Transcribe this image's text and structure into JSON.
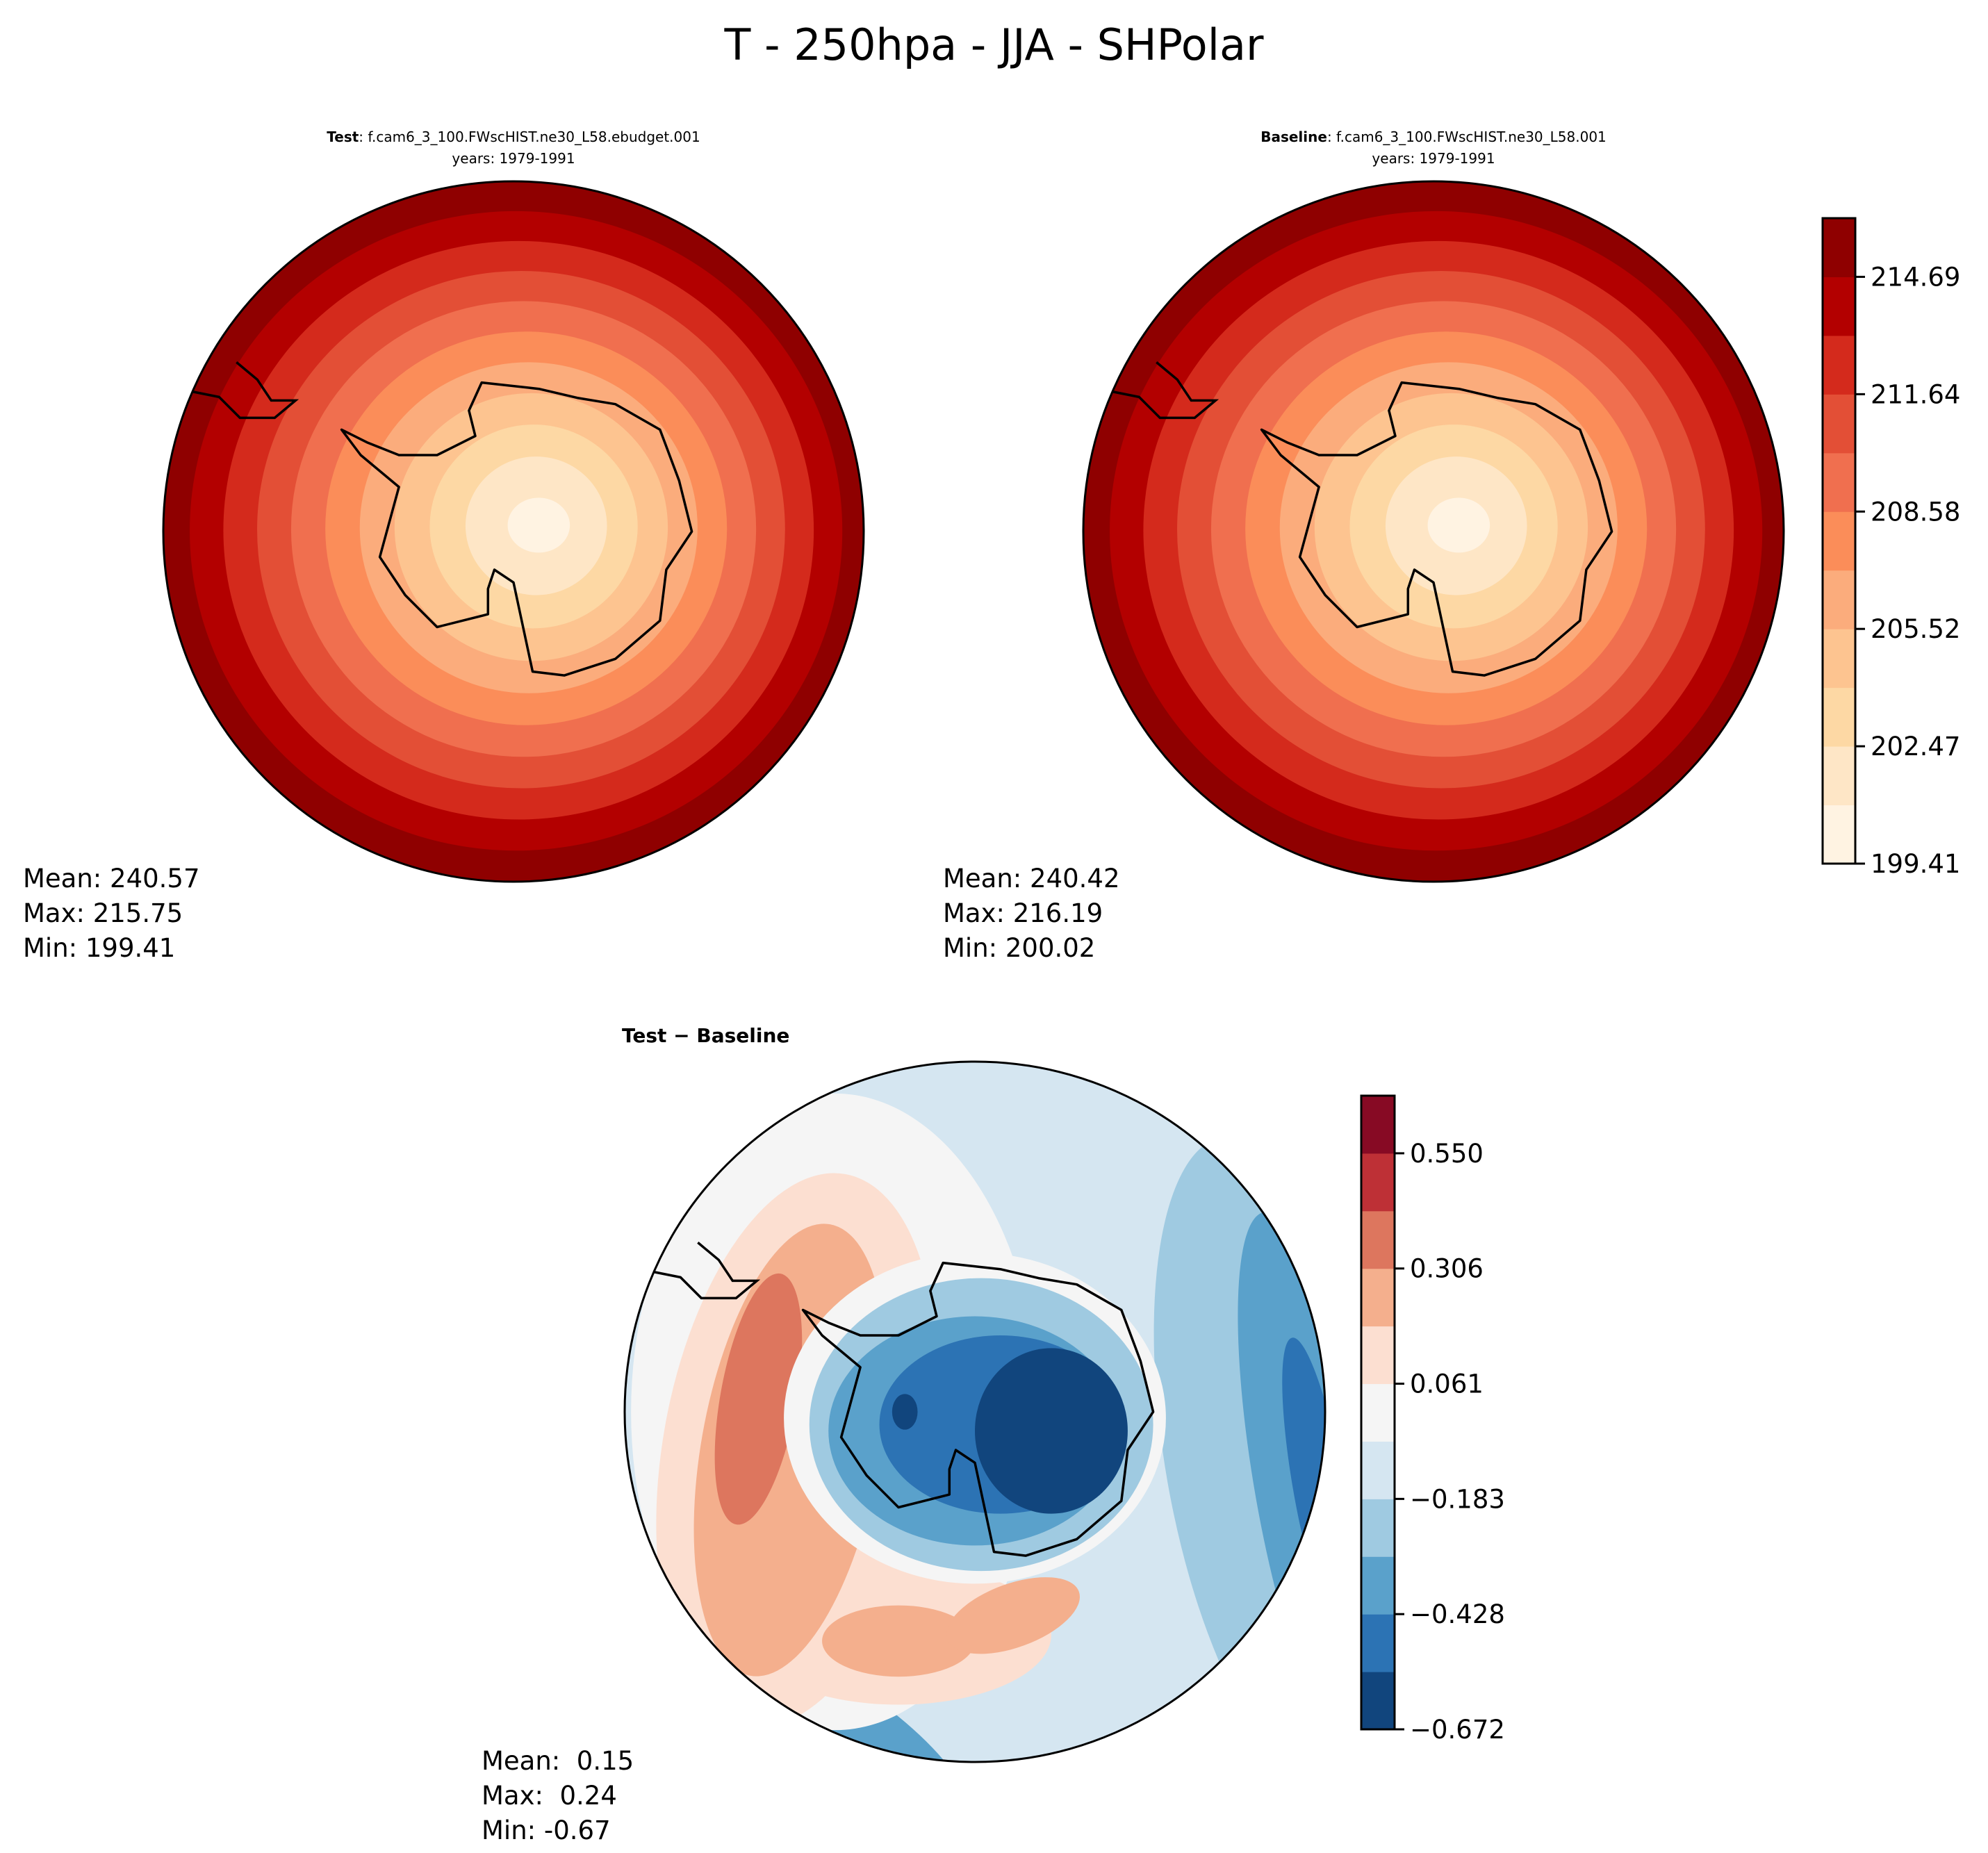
{
  "title": "T - 250hpa - JJA - SHPolar",
  "panels": [
    {
      "label": "Test",
      "case": ": f.cam6_3_100.FWscHIST.ne30_L58.ebudget.001",
      "years": "years: 1979-1991",
      "stats": {
        "mean": "Mean: 240.57",
        "max": "Max: 215.75",
        "min": "Min: 199.41"
      }
    },
    {
      "label": "Baseline",
      "case": ": f.cam6_3_100.FWscHIST.ne30_L58.001",
      "years": "years: 1979-1991",
      "stats": {
        "mean": "Mean: 240.42",
        "max": "Max: 216.19",
        "min": "Min: 200.02"
      }
    },
    {
      "label": "Test − Baseline",
      "stats": {
        "mean": "Mean:  0.15",
        "max": "Max:  0.24",
        "min": "Min: -0.67"
      }
    }
  ],
  "chart_data": [
    {
      "type": "heatmap",
      "subtype": "polar-contour",
      "panel": "Test",
      "colorbar": "shared-top",
      "levels_min": 199.41,
      "levels_step": 1.5275,
      "n_bins": 11,
      "colors": [
        "#fff3e2",
        "#fee6c6",
        "#fdd8a4",
        "#fdc490",
        "#fbac7c",
        "#fb8d59",
        "#f06f4f",
        "#e34f36",
        "#d42a1c",
        "#b30000",
        "#8f0000"
      ]
    },
    {
      "type": "heatmap",
      "subtype": "polar-contour",
      "panel": "Baseline",
      "colorbar": {
        "ticks": [
          "199.41",
          "202.47",
          "205.52",
          "208.58",
          "211.64",
          "214.69"
        ]
      },
      "levels_min": 199.41,
      "levels_step": 1.5275,
      "n_bins": 11,
      "colors": [
        "#fff3e2",
        "#fee6c6",
        "#fdd8a4",
        "#fdc490",
        "#fbac7c",
        "#fb8d59",
        "#f06f4f",
        "#e34f36",
        "#d42a1c",
        "#b30000",
        "#8f0000"
      ]
    },
    {
      "type": "heatmap",
      "subtype": "polar-contour",
      "panel": "Test − Baseline",
      "colorbar": {
        "ticks": [
          "−0.672",
          "−0.428",
          "−0.183",
          "0.061",
          "0.306",
          "0.550"
        ]
      },
      "levels_min": -0.672,
      "levels_step": 0.12225,
      "n_bins": 11,
      "colors": [
        "#11457d",
        "#2c73b4",
        "#5aa1cb",
        "#9fcae1",
        "#d5e6f1",
        "#f5f5f5",
        "#fcdfd1",
        "#f4af8d",
        "#dd765e",
        "#be3036",
        "#870a24"
      ]
    }
  ]
}
